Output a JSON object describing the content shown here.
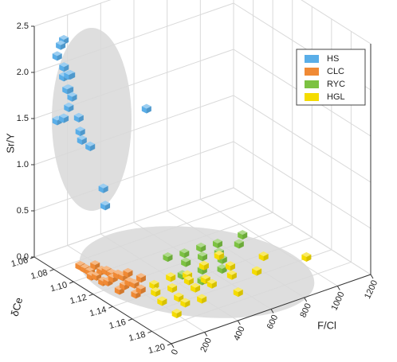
{
  "chart_data": {
    "type": "scatter3d",
    "xlabel": "F/Cl",
    "ylabel": "δCe",
    "zlabel": "Sr/Y",
    "xlim": [
      0,
      1200
    ],
    "xticks": [
      0,
      200,
      400,
      600,
      800,
      1000,
      1200
    ],
    "ylim": [
      1.06,
      1.2
    ],
    "yticks": [
      1.06,
      1.08,
      {
        "value": 1.1,
        "label": "1.10"
      },
      1.12,
      1.14,
      1.16,
      1.18,
      {
        "value": 1.2,
        "label": "1.20"
      }
    ],
    "zlim": [
      0,
      2.5
    ],
    "zticks": [
      {
        "value": 0,
        "label": "0.0"
      },
      0.5,
      {
        "value": 1,
        "label": "1.0"
      },
      1.5,
      {
        "value": 2,
        "label": "2.0"
      },
      2.5
    ],
    "grid": true,
    "legend": "upper right",
    "series": [
      {
        "name": "HS",
        "color": "#5aaee8",
        "x": [
          60,
          20,
          100,
          40,
          60,
          90,
          30,
          120,
          80,
          110,
          20,
          60,
          90,
          100,
          150,
          110,
          160,
          180,
          280,
          440
        ],
        "y": [
          1.08,
          1.08,
          1.07,
          1.09,
          1.08,
          1.08,
          1.09,
          1.07,
          1.08,
          1.08,
          1.08,
          1.08,
          1.08,
          1.09,
          1.08,
          1.09,
          1.09,
          1.1,
          1.085,
          1.1
        ],
        "z": [
          2.45,
          2.3,
          2.3,
          2.15,
          2.05,
          2.05,
          2.0,
          2.05,
          1.9,
          1.8,
          1.6,
          1.6,
          1.7,
          1.5,
          1.55,
          1.4,
          1.3,
          0.9,
          0.55,
          1.6
        ]
      },
      {
        "name": "CLC",
        "color": "#f08a35",
        "x": [
          40,
          70,
          100,
          130,
          50,
          80,
          110,
          140,
          170,
          60,
          90,
          120,
          150,
          180,
          210,
          100,
          130,
          160,
          190,
          140,
          170,
          230
        ],
        "y": [
          1.1,
          1.1,
          1.1,
          1.1,
          1.11,
          1.11,
          1.11,
          1.11,
          1.11,
          1.12,
          1.12,
          1.12,
          1.12,
          1.12,
          1.12,
          1.13,
          1.13,
          1.13,
          1.13,
          1.14,
          1.14,
          1.13
        ],
        "z": [
          0.15,
          0.1,
          0.05,
          0.1,
          0.1,
          0.08,
          0.12,
          0.1,
          0.05,
          0.1,
          0.08,
          0.1,
          0.12,
          0.08,
          0.1,
          0.05,
          0.08,
          0.1,
          0.06,
          0.05,
          0.08,
          0.1
        ]
      },
      {
        "name": "RYC",
        "color": "#7cc242",
        "x": [
          450,
          550,
          650,
          750,
          500,
          600,
          700,
          820,
          420,
          540,
          660,
          900,
          480,
          600
        ],
        "y": [
          1.12,
          1.12,
          1.12,
          1.12,
          1.13,
          1.13,
          1.13,
          1.13,
          1.14,
          1.14,
          1.14,
          1.12,
          1.15,
          1.15
        ],
        "z": [
          0.12,
          0.1,
          0.1,
          0.08,
          0.1,
          0.1,
          0.08,
          0.1,
          0.08,
          0.06,
          0.1,
          0.08,
          0.05,
          0.1
        ]
      },
      {
        "name": "HGL",
        "color": "#f5dc00",
        "x": [
          250,
          350,
          450,
          550,
          200,
          300,
          400,
          500,
          650,
          180,
          280,
          380,
          480,
          600,
          750,
          150,
          260,
          360,
          520,
          850,
          990,
          700
        ],
        "y": [
          1.14,
          1.14,
          1.14,
          1.14,
          1.15,
          1.15,
          1.15,
          1.15,
          1.15,
          1.16,
          1.16,
          1.16,
          1.16,
          1.16,
          1.16,
          1.18,
          1.17,
          1.17,
          1.18,
          1.15,
          1.17,
          1.13
        ],
        "z": [
          0.08,
          0.1,
          0.06,
          0.1,
          0.1,
          0.08,
          0.1,
          0.05,
          0.1,
          0.08,
          0.06,
          0.1,
          0.08,
          0.1,
          0.05,
          0.1,
          0.08,
          0.06,
          0.1,
          0.08,
          0.12,
          0.05
        ]
      }
    ]
  }
}
